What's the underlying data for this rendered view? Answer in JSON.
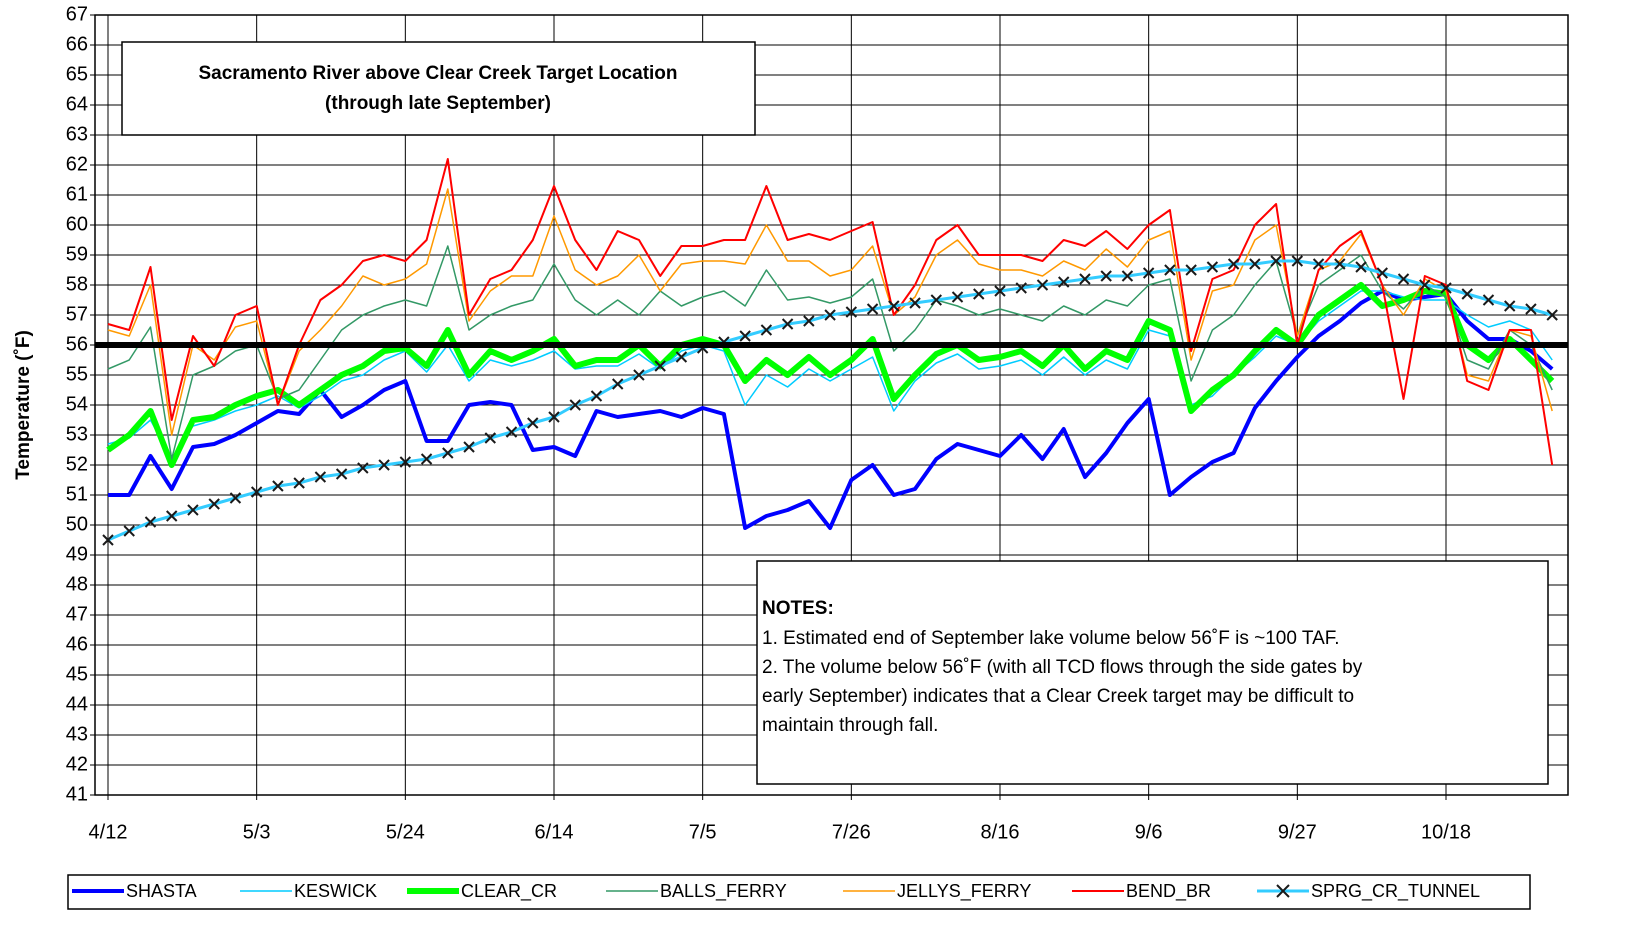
{
  "chart_data": {
    "type": "line",
    "title": [
      "Sacramento River above Clear Creek Target Location",
      "(through late September)"
    ],
    "y_label": "Temperature (˚F)",
    "ylim": [
      41,
      67
    ],
    "yticks": [
      41,
      42,
      43,
      44,
      45,
      46,
      47,
      48,
      49,
      50,
      51,
      52,
      53,
      54,
      55,
      56,
      57,
      58,
      59,
      60,
      61,
      62,
      63,
      64,
      65,
      66,
      67
    ],
    "grid": true,
    "reference_line": 56,
    "reference_color": "#000000",
    "categories": [
      "4/12",
      null,
      null,
      null,
      null,
      null,
      null,
      "5/3",
      null,
      null,
      null,
      null,
      null,
      null,
      "5/24",
      null,
      null,
      null,
      null,
      null,
      null,
      "6/14",
      null,
      null,
      null,
      null,
      null,
      null,
      "7/5",
      null,
      null,
      null,
      null,
      null,
      null,
      "7/26",
      null,
      null,
      null,
      null,
      null,
      null,
      "8/16",
      null,
      null,
      null,
      null,
      null,
      null,
      "9/6",
      null,
      null,
      null,
      null,
      null,
      null,
      "9/27",
      null,
      null,
      null,
      null,
      null,
      null,
      "10/18",
      null,
      null,
      null,
      null,
      null
    ],
    "notes": {
      "heading": "NOTES:",
      "lines": [
        "1. Estimated end of September lake volume below 56˚F is ~100 TAF.",
        "2. The volume below 56˚F (with all TCD flows through the side gates by",
        "early September) indicates that a Clear Creek target may be difficult to",
        "maintain through fall."
      ]
    },
    "series": [
      {
        "name": "SHASTA",
        "color": "#0000ff",
        "values": [
          51.0,
          51.0,
          52.3,
          51.2,
          52.6,
          52.7,
          53.0,
          53.4,
          53.8,
          53.7,
          54.5,
          53.6,
          54.0,
          54.5,
          54.8,
          52.8,
          52.8,
          54.0,
          54.1,
          54.0,
          52.5,
          52.6,
          52.3,
          53.8,
          53.6,
          53.7,
          53.8,
          53.6,
          53.9,
          53.7,
          49.9,
          50.3,
          50.5,
          50.8,
          49.9,
          51.5,
          52.0,
          51.0,
          51.2,
          52.2,
          52.7,
          52.5,
          52.3,
          53.0,
          52.2,
          53.2,
          51.6,
          52.4,
          53.4,
          54.2,
          51.0,
          51.6,
          52.1,
          52.4,
          53.9,
          54.8,
          55.6,
          56.3,
          56.8,
          57.4,
          57.8,
          57.5,
          57.6,
          57.7,
          56.8,
          56.2,
          56.2,
          55.8,
          55.2
        ]
      },
      {
        "name": "KESWICK",
        "color": "#00ccff",
        "values": [
          52.7,
          52.9,
          53.5,
          52.2,
          53.3,
          53.5,
          53.8,
          54.0,
          54.3,
          53.9,
          54.3,
          54.8,
          55.0,
          55.5,
          55.8,
          55.1,
          56.0,
          54.8,
          55.5,
          55.3,
          55.5,
          55.8,
          55.2,
          55.3,
          55.3,
          55.7,
          55.2,
          55.8,
          56.0,
          55.8,
          54.0,
          55.0,
          54.6,
          55.2,
          54.8,
          55.2,
          55.6,
          53.8,
          54.8,
          55.4,
          55.7,
          55.2,
          55.3,
          55.5,
          55.0,
          55.6,
          55.0,
          55.5,
          55.2,
          56.5,
          56.3,
          54.0,
          54.3,
          55.0,
          55.6,
          56.3,
          56.0,
          56.8,
          57.3,
          57.8,
          57.8,
          57.6,
          57.5,
          57.5,
          57.0,
          56.6,
          56.8,
          56.5,
          55.5
        ]
      },
      {
        "name": "CLEAR_CR",
        "color": "#00ff00",
        "values": [
          52.5,
          53.0,
          53.8,
          52.0,
          53.5,
          53.6,
          54.0,
          54.3,
          54.5,
          54.0,
          54.5,
          55.0,
          55.3,
          55.8,
          55.9,
          55.3,
          56.5,
          55.0,
          55.8,
          55.5,
          55.8,
          56.2,
          55.3,
          55.5,
          55.5,
          56.0,
          55.3,
          56.0,
          56.2,
          56.0,
          54.8,
          55.5,
          55.0,
          55.6,
          55.0,
          55.5,
          56.2,
          54.2,
          55.0,
          55.7,
          56.0,
          55.5,
          55.6,
          55.8,
          55.3,
          56.0,
          55.2,
          55.8,
          55.5,
          56.8,
          56.5,
          53.8,
          54.5,
          55.0,
          55.8,
          56.5,
          56.0,
          57.0,
          57.5,
          58.0,
          57.3,
          57.5,
          57.8,
          57.7,
          56.0,
          55.5,
          56.2,
          55.5,
          54.8
        ]
      },
      {
        "name": "BALLS_FERRY",
        "color": "#339966",
        "values": [
          55.2,
          55.5,
          56.6,
          52.2,
          55.0,
          55.3,
          55.8,
          56.0,
          54.2,
          54.5,
          55.5,
          56.5,
          57.0,
          57.3,
          57.5,
          57.3,
          59.3,
          56.5,
          57.0,
          57.3,
          57.5,
          58.7,
          57.5,
          57.0,
          57.5,
          57.0,
          57.8,
          57.3,
          57.6,
          57.8,
          57.3,
          58.5,
          57.5,
          57.6,
          57.4,
          57.6,
          58.2,
          55.8,
          56.5,
          57.5,
          57.3,
          57.0,
          57.2,
          57.0,
          56.8,
          57.3,
          57.0,
          57.5,
          57.3,
          58.0,
          58.2,
          54.8,
          56.5,
          57.0,
          58.0,
          58.8,
          56.3,
          58.0,
          58.5,
          59.0,
          57.8,
          57.2,
          58.0,
          57.6,
          55.5,
          55.2,
          56.5,
          56.0,
          54.5
        ]
      },
      {
        "name": "JELLYS_FERRY",
        "color": "#ff9900",
        "values": [
          56.5,
          56.3,
          58.0,
          53.0,
          56.0,
          55.5,
          56.6,
          56.8,
          54.0,
          55.8,
          56.5,
          57.3,
          58.3,
          58.0,
          58.2,
          58.7,
          61.2,
          56.8,
          57.8,
          58.3,
          58.3,
          60.3,
          58.5,
          58.0,
          58.3,
          59.0,
          57.8,
          58.7,
          58.8,
          58.8,
          58.7,
          60.0,
          58.8,
          58.8,
          58.3,
          58.5,
          59.3,
          57.0,
          57.6,
          59.0,
          59.5,
          58.7,
          58.5,
          58.5,
          58.3,
          58.8,
          58.5,
          59.2,
          58.6,
          59.5,
          59.8,
          55.5,
          57.8,
          58.0,
          59.5,
          60.0,
          56.3,
          58.5,
          58.8,
          59.7,
          58.0,
          57.0,
          58.2,
          57.8,
          55.0,
          54.8,
          56.5,
          56.3,
          53.8
        ]
      },
      {
        "name": "BEND_BR",
        "color": "#ff0000",
        "values": [
          56.7,
          56.5,
          58.6,
          53.5,
          56.3,
          55.3,
          57.0,
          57.3,
          54.0,
          56.0,
          57.5,
          58.0,
          58.8,
          59.0,
          58.8,
          59.5,
          62.2,
          57.0,
          58.2,
          58.5,
          59.5,
          61.3,
          59.5,
          58.5,
          59.8,
          59.5,
          58.3,
          59.3,
          59.3,
          59.5,
          59.5,
          61.3,
          59.5,
          59.7,
          59.5,
          59.8,
          60.1,
          57.0,
          58.0,
          59.5,
          60.0,
          59.0,
          59.0,
          59.0,
          58.8,
          59.5,
          59.3,
          59.8,
          59.2,
          60.0,
          60.5,
          55.8,
          58.2,
          58.5,
          60.0,
          60.7,
          56.0,
          58.5,
          59.3,
          59.8,
          58.0,
          54.2,
          58.3,
          58.0,
          54.8,
          54.5,
          56.5,
          56.5,
          52.0
        ]
      },
      {
        "name": "SPRG_CR_TUNNEL",
        "color": "#33ccff",
        "marker": "x",
        "marker_color": "#1a1a1a",
        "values": [
          49.5,
          49.8,
          50.1,
          50.3,
          50.5,
          50.7,
          50.9,
          51.1,
          51.3,
          51.4,
          51.6,
          51.7,
          51.9,
          52.0,
          52.1,
          52.2,
          52.4,
          52.6,
          52.9,
          53.1,
          53.4,
          53.6,
          54.0,
          54.3,
          54.7,
          55.0,
          55.3,
          55.6,
          55.9,
          56.1,
          56.3,
          56.5,
          56.7,
          56.8,
          57.0,
          57.1,
          57.2,
          57.3,
          57.4,
          57.5,
          57.6,
          57.7,
          57.8,
          57.9,
          58.0,
          58.1,
          58.2,
          58.3,
          58.3,
          58.4,
          58.5,
          58.5,
          58.6,
          58.7,
          58.7,
          58.8,
          58.8,
          58.7,
          58.7,
          58.6,
          58.4,
          58.2,
          58.0,
          57.9,
          57.7,
          57.5,
          57.3,
          57.2,
          57.0
        ]
      }
    ]
  }
}
